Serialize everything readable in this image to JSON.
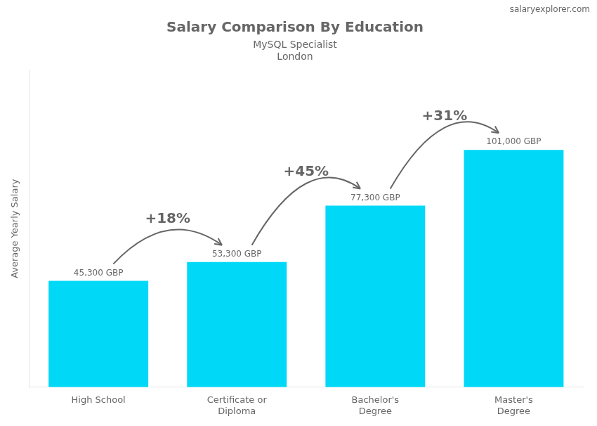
{
  "chart_data": {
    "type": "bar",
    "title": "Salary Comparison By Education",
    "subtitle": "MySQL Specialist",
    "location": "London",
    "site": "salaryexplorer.com",
    "ylabel": "Average Yearly Salary",
    "categories": [
      "High School",
      "Certificate or\nDiploma",
      "Bachelor's\nDegree",
      "Master's\nDegree"
    ],
    "values": [
      45300,
      53300,
      77300,
      101000
    ],
    "value_labels": [
      "45,300 GBP",
      "53,300 GBP",
      "77,300 GBP",
      "101,000 GBP"
    ],
    "data_labels": true,
    "color": "#00d8f8",
    "ylim": [
      0,
      135000
    ],
    "grid": false,
    "tick_labels": "x",
    "annotations": [
      {
        "text": "+18%",
        "from": 0,
        "to": 1
      },
      {
        "text": "+45%",
        "from": 1,
        "to": 2
      },
      {
        "text": "+31%",
        "from": 2,
        "to": 3
      }
    ]
  }
}
